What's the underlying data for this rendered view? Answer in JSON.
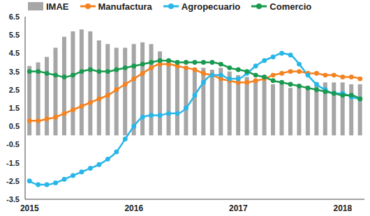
{
  "chart_data": {
    "type": "bar",
    "categories": [
      "2015",
      null,
      null,
      null,
      null,
      null,
      null,
      null,
      null,
      null,
      null,
      null,
      "2016",
      null,
      null,
      null,
      null,
      null,
      null,
      null,
      null,
      null,
      null,
      null,
      "2017",
      null,
      null,
      null,
      null,
      null,
      null,
      null,
      null,
      null,
      null,
      null,
      "2018",
      null,
      null
    ],
    "series": [
      {
        "name": "IMAE",
        "type": "bar",
        "color": "#a6a6a6",
        "values": [
          3.8,
          4.0,
          4.3,
          4.8,
          5.4,
          5.7,
          5.8,
          5.7,
          5.2,
          5.0,
          4.8,
          4.8,
          5.0,
          5.1,
          5.0,
          4.6,
          4.1,
          3.8,
          3.7,
          3.7,
          3.7,
          3.6,
          3.7,
          3.5,
          3.3,
          3.2,
          3.0,
          3.0,
          2.8,
          2.8,
          2.6,
          2.6,
          2.6,
          2.7,
          2.9,
          2.9,
          2.9,
          2.8,
          2.8
        ]
      },
      {
        "name": "Manufactura",
        "type": "line",
        "marker": "circle",
        "color": "#f58220",
        "values": [
          0.8,
          0.8,
          0.9,
          1.0,
          1.2,
          1.4,
          1.6,
          1.8,
          2.0,
          2.2,
          2.5,
          2.8,
          3.1,
          3.4,
          3.7,
          3.9,
          3.9,
          3.8,
          3.7,
          3.6,
          3.4,
          3.3,
          3.1,
          3.0,
          2.9,
          2.9,
          3.0,
          3.1,
          3.3,
          3.4,
          3.5,
          3.5,
          3.4,
          3.4,
          3.3,
          3.3,
          3.2,
          3.2,
          3.1
        ]
      },
      {
        "name": "Agropecuario",
        "type": "line",
        "marker": "circle",
        "color": "#29b6e8",
        "values": [
          -2.5,
          -2.7,
          -2.7,
          -2.6,
          -2.4,
          -2.2,
          -2.0,
          -1.8,
          -1.6,
          -1.3,
          -0.9,
          -0.2,
          0.5,
          1.0,
          1.1,
          1.1,
          1.2,
          1.2,
          1.5,
          2.2,
          2.9,
          3.3,
          3.3,
          3.1,
          3.1,
          3.4,
          3.8,
          4.1,
          4.3,
          4.5,
          4.4,
          3.9,
          3.3,
          2.8,
          2.5,
          2.3,
          2.3,
          2.1,
          2.0
        ]
      },
      {
        "name": "Comercio",
        "type": "line",
        "marker": "circle",
        "color": "#1a9a50",
        "values": [
          3.5,
          3.5,
          3.4,
          3.3,
          3.2,
          3.3,
          3.5,
          3.6,
          3.5,
          3.5,
          3.6,
          3.7,
          3.8,
          3.9,
          4.0,
          4.1,
          4.1,
          4.0,
          4.0,
          4.0,
          4.0,
          4.0,
          3.9,
          3.7,
          3.6,
          3.5,
          3.3,
          3.2,
          3.0,
          2.9,
          2.8,
          2.7,
          2.6,
          2.5,
          2.4,
          2.3,
          2.2,
          2.2,
          2.0
        ]
      }
    ],
    "ylim": [
      -3.5,
      6.5
    ],
    "yticks": [
      -3.5,
      -2.5,
      -1.5,
      -0.5,
      0.5,
      1.5,
      2.5,
      3.5,
      4.5,
      5.5,
      6.5
    ],
    "grid": false,
    "legend": "top"
  }
}
